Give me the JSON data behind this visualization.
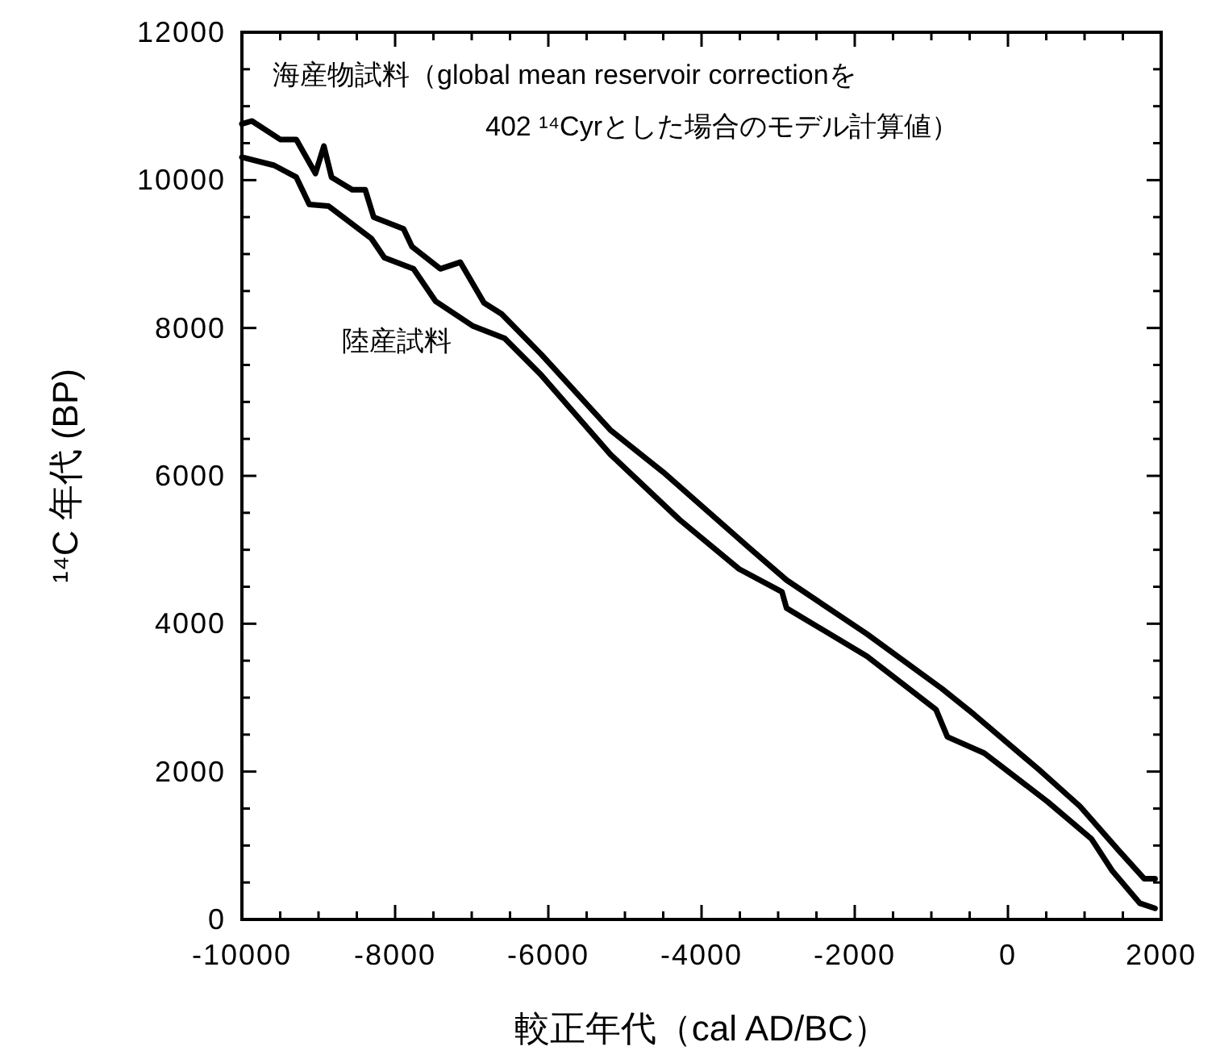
{
  "chart_data": {
    "type": "line",
    "xlabel": "較正年代（cal AD/BC）",
    "ylabel": "¹⁴C 年代 (BP)",
    "xlim": [
      -10000,
      2000
    ],
    "ylim": [
      0,
      12000
    ],
    "xticks": [
      -10000,
      {
        "value": -9500,
        "label": null
      },
      {
        "value": -9000,
        "label": null
      },
      {
        "value": -8500,
        "label": null
      },
      -8000,
      {
        "value": -7500,
        "label": null
      },
      {
        "value": -7000,
        "label": null
      },
      {
        "value": -6500,
        "label": null
      },
      -6000,
      {
        "value": -5500,
        "label": null
      },
      {
        "value": -5000,
        "label": null
      },
      {
        "value": -4500,
        "label": null
      },
      -4000,
      {
        "value": -3500,
        "label": null
      },
      {
        "value": -3000,
        "label": null
      },
      {
        "value": -2500,
        "label": null
      },
      -2000,
      {
        "value": -1500,
        "label": null
      },
      {
        "value": -1000,
        "label": null
      },
      {
        "value": -500,
        "label": null
      },
      0,
      {
        "value": 500,
        "label": null
      },
      {
        "value": 1000,
        "label": null
      },
      {
        "value": 1500,
        "label": null
      },
      2000
    ],
    "yticks": [
      0,
      {
        "value": 500,
        "label": null
      },
      {
        "value": 1000,
        "label": null
      },
      {
        "value": 1500,
        "label": null
      },
      2000,
      {
        "value": 2500,
        "label": null
      },
      {
        "value": 3000,
        "label": null
      },
      {
        "value": 3500,
        "label": null
      },
      4000,
      {
        "value": 4500,
        "label": null
      },
      {
        "value": 5000,
        "label": null
      },
      {
        "value": 5500,
        "label": null
      },
      6000,
      {
        "value": 6500,
        "label": null
      },
      {
        "value": 7000,
        "label": null
      },
      {
        "value": 7500,
        "label": null
      },
      8000,
      {
        "value": 8500,
        "label": null
      },
      {
        "value": 9000,
        "label": null
      },
      {
        "value": 9500,
        "label": null
      },
      10000,
      {
        "value": 10500,
        "label": null
      },
      {
        "value": 11000,
        "label": null
      },
      {
        "value": 11500,
        "label": null
      },
      12000
    ],
    "grid": false,
    "series": [
      {
        "name": "海産物試料（global mean reservoir correctionを\n402 ¹⁴Cyrとした場合のモデル計算値）",
        "color": "#000000",
        "x": [
          -10000,
          -9870,
          -9500,
          -9290,
          -9040,
          -8930,
          -8830,
          -8560,
          -8390,
          -8280,
          -7890,
          -7780,
          -7410,
          -7150,
          -6840,
          -6610,
          -6090,
          -5190,
          -4500,
          -3370,
          -2890,
          -1840,
          -860,
          -440,
          400,
          940,
          1440,
          1780,
          1920
        ],
        "values": [
          10760,
          10800,
          10550,
          10550,
          10090,
          10460,
          10040,
          9870,
          9870,
          9500,
          9340,
          9100,
          8800,
          8890,
          8340,
          8190,
          7640,
          6620,
          6050,
          5020,
          4590,
          3860,
          3120,
          2770,
          2030,
          1530,
          940,
          550,
          550
        ]
      },
      {
        "name": "陸産試料",
        "color": "#000000",
        "x": [
          -10000,
          -9580,
          -9290,
          -9120,
          -8870,
          -8310,
          -8140,
          -7760,
          -7470,
          -6990,
          -6570,
          -6090,
          -5190,
          -4290,
          -3510,
          -2950,
          -2890,
          -1840,
          -940,
          -790,
          -310,
          520,
          1090,
          1360,
          1720,
          1920
        ],
        "values": [
          10310,
          10200,
          10040,
          9670,
          9650,
          9210,
          8950,
          8800,
          8360,
          8030,
          7860,
          7360,
          6290,
          5410,
          4740,
          4430,
          4210,
          3560,
          2840,
          2470,
          2250,
          1590,
          1090,
          660,
          220,
          150
        ]
      }
    ]
  }
}
